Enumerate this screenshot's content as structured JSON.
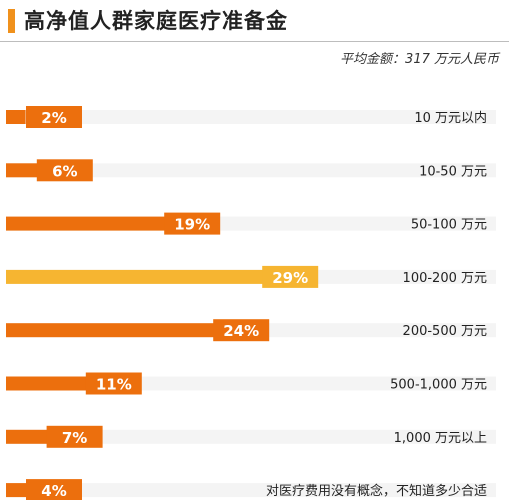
{
  "header": {
    "title": "高净值人群家庭医疗准备金",
    "subtitle": "平均金额：317 万元人民币"
  },
  "colors": {
    "accent": "#f0911c",
    "bar": "#ec6f0d",
    "highlight": "#f6b531",
    "track": "#f4f4f4",
    "label_text": "#ffffff"
  },
  "chart_data": {
    "type": "bar",
    "orientation": "horizontal",
    "title": "高净值人群家庭医疗准备金",
    "subtitle": "平均金额：317 万元人民币",
    "categories": [
      "10 万元以内",
      "10-50 万元",
      "50-100 万元",
      "100-200 万元",
      "200-500 万元",
      "500-1,000 万元",
      "1,000 万元以上",
      "对医疗费用没有概念，不知道多少合适"
    ],
    "values": [
      2,
      6,
      19,
      29,
      24,
      11,
      7,
      4
    ],
    "value_labels": [
      "2%",
      "6%",
      "19%",
      "29%",
      "24%",
      "11%",
      "7%",
      "4%"
    ],
    "highlight_index": 3,
    "unit": "%",
    "xlim": [
      0,
      50
    ],
    "grid": false,
    "legend": "none"
  }
}
